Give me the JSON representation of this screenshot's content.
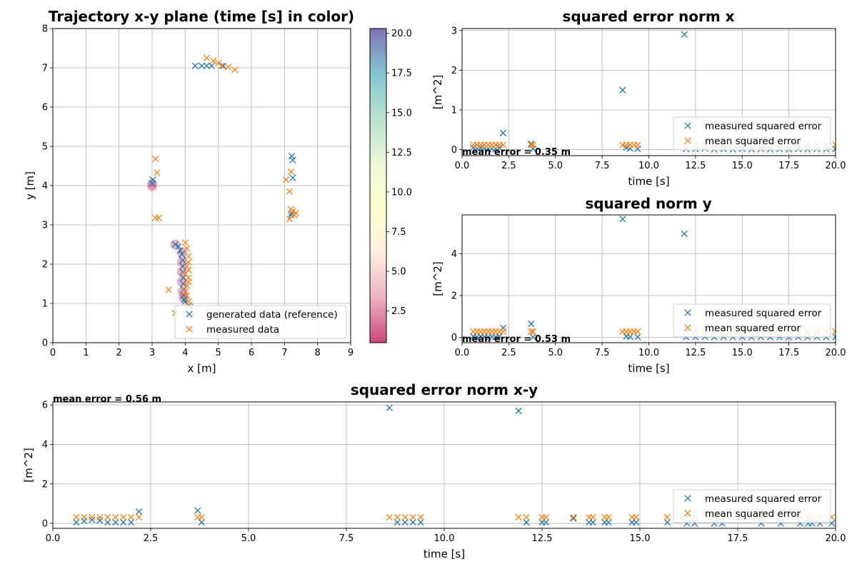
{
  "colors": {
    "measured_error": "#1f77b4",
    "mean_error": "#ff7f0e",
    "grid": "#b0b0b0",
    "colormap_stops": [
      "#c2185b",
      "#e6a0b0",
      "#fde9d9",
      "#ffffbf",
      "#e6f5d0",
      "#a6dbc0",
      "#66b8c8",
      "#5e4fa2"
    ]
  },
  "chart_data": [
    {
      "id": "traj",
      "type": "scatter",
      "title": "Trajectory x-y plane  (time [s] in color)",
      "xlabel": "x [m]",
      "ylabel": "y [m]",
      "xlim": [
        0,
        9
      ],
      "ylim": [
        0,
        8
      ],
      "xticks": [
        0,
        1,
        2,
        3,
        4,
        5,
        6,
        7,
        8,
        9
      ],
      "yticks": [
        0,
        1,
        2,
        3,
        4,
        5,
        6,
        7,
        8
      ],
      "grid": true,
      "legend_position": "lower-right",
      "legend": [
        "generated data (reference)",
        "measured data"
      ],
      "colorbar": {
        "range": [
          0.5,
          20.3
        ],
        "ticks": [
          2.5,
          5.0,
          7.5,
          10.0,
          12.5,
          15.0,
          17.5,
          20.0
        ],
        "tick_labels": [
          "2.5",
          "5.0",
          "7.5",
          "10.0",
          "12.5",
          "15.0",
          "17.5",
          "20.0"
        ]
      },
      "series": [
        {
          "name": "generated data (reference)",
          "points": [
            [
              3.7,
              2.5
            ],
            [
              3.8,
              2.45
            ],
            [
              3.85,
              2.35
            ],
            [
              3.9,
              2.25
            ],
            [
              3.92,
              2.1
            ],
            [
              3.93,
              1.95
            ],
            [
              3.93,
              1.8
            ],
            [
              3.94,
              1.65
            ],
            [
              3.94,
              1.5
            ],
            [
              3.95,
              1.35
            ],
            [
              3.95,
              1.2
            ],
            [
              3.97,
              1.1
            ],
            [
              4.0,
              1.05
            ],
            [
              4.1,
              0.95
            ],
            [
              3.0,
              4.05
            ],
            [
              3.02,
              4.15
            ],
            [
              7.2,
              3.25
            ],
            [
              7.22,
              3.3
            ],
            [
              7.25,
              4.2
            ],
            [
              7.25,
              4.65
            ],
            [
              7.22,
              4.75
            ],
            [
              4.3,
              7.05
            ],
            [
              4.5,
              7.05
            ],
            [
              4.65,
              7.05
            ],
            [
              4.8,
              7.05
            ],
            [
              5.15,
              7.05
            ]
          ]
        },
        {
          "name": "measured data",
          "points": [
            [
              3.5,
              1.35
            ],
            [
              3.7,
              0.75
            ],
            [
              4.0,
              2.55
            ],
            [
              4.05,
              2.4
            ],
            [
              4.1,
              2.2
            ],
            [
              4.1,
              2.05
            ],
            [
              4.05,
              1.95
            ],
            [
              4.1,
              1.85
            ],
            [
              4.0,
              1.75
            ],
            [
              4.1,
              1.65
            ],
            [
              4.1,
              1.55
            ],
            [
              4.05,
              1.45
            ],
            [
              4.0,
              1.3
            ],
            [
              4.05,
              1.2
            ],
            [
              4.1,
              1.05
            ],
            [
              4.15,
              0.92
            ],
            [
              3.1,
              4.68
            ],
            [
              3.15,
              4.33
            ],
            [
              3.1,
              3.18
            ],
            [
              3.2,
              3.18
            ],
            [
              7.05,
              4.15
            ],
            [
              7.15,
              3.85
            ],
            [
              7.2,
              4.35
            ],
            [
              7.15,
              3.15
            ],
            [
              7.2,
              3.4
            ],
            [
              7.3,
              3.25
            ],
            [
              7.35,
              3.3
            ],
            [
              7.25,
              3.35
            ],
            [
              4.65,
              7.25
            ],
            [
              4.85,
              7.18
            ],
            [
              5.0,
              7.12
            ],
            [
              5.1,
              7.05
            ],
            [
              5.3,
              7.02
            ],
            [
              5.5,
              6.95
            ]
          ]
        }
      ],
      "reference_circles": [
        [
          3.7,
          2.5
        ],
        [
          3.9,
          2.3
        ],
        [
          3.9,
          2.05
        ],
        [
          3.9,
          1.8
        ],
        [
          3.9,
          1.55
        ],
        [
          3.92,
          1.3
        ],
        [
          3.95,
          1.15
        ],
        [
          3.0,
          4.05
        ],
        [
          3.0,
          3.98
        ]
      ]
    },
    {
      "id": "ex",
      "type": "scatter",
      "title": "squared error norm  x",
      "xlabel": "time [s]",
      "ylabel": "[m^2]",
      "xlim": [
        0,
        20
      ],
      "ylim": [
        -0.15,
        3.05
      ],
      "xticks": [
        0.0,
        2.5,
        5.0,
        7.5,
        10.0,
        12.5,
        15.0,
        17.5,
        20.0
      ],
      "yticks": [
        0,
        1,
        2,
        3
      ],
      "grid": true,
      "legend_position": "lower-right",
      "annotation": "mean error = 0.35 m",
      "mean_value": 0.12,
      "series": [
        {
          "name": "measured squared error",
          "x": [
            0.6,
            0.8,
            1.0,
            1.2,
            1.4,
            1.6,
            1.8,
            2.0,
            2.2,
            3.7,
            3.8,
            8.6,
            8.8,
            9.0,
            9.4,
            11.9,
            12.0,
            12.5,
            13.0,
            13.5,
            14.0,
            14.5,
            15.0,
            15.5,
            16.0,
            16.5,
            17.0,
            17.5,
            18.0,
            18.5,
            19.0,
            19.5,
            20.0
          ],
          "y": [
            0.05,
            0.03,
            0.05,
            0.03,
            0.02,
            0.03,
            0.02,
            0.05,
            0.42,
            0.15,
            0.02,
            1.5,
            0.05,
            0.03,
            0.02,
            2.9,
            0.02,
            0.02,
            0.03,
            0.01,
            0.02,
            0.01,
            0.02,
            0.01,
            0.02,
            0.01,
            0.02,
            0.01,
            0.02,
            0.01,
            0.02,
            0.01,
            0.02
          ]
        },
        {
          "name": "mean squared error",
          "x": [
            0.6,
            0.8,
            1.0,
            1.2,
            1.4,
            1.6,
            1.8,
            2.0,
            2.2,
            3.7,
            3.8,
            8.6,
            8.8,
            9.0,
            9.2,
            9.4,
            12.0,
            12.5,
            13.0,
            13.5,
            14.0,
            14.5,
            15.0,
            15.5,
            16.0,
            16.5,
            17.0,
            17.5,
            18.0,
            18.5,
            19.0,
            19.5,
            20.0
          ],
          "y": [
            0.12,
            0.12,
            0.12,
            0.12,
            0.12,
            0.12,
            0.12,
            0.12,
            0.12,
            0.12,
            0.12,
            0.12,
            0.12,
            0.12,
            0.12,
            0.12,
            0.12,
            0.12,
            0.12,
            0.12,
            0.12,
            0.12,
            0.12,
            0.12,
            0.12,
            0.12,
            0.12,
            0.12,
            0.12,
            0.12,
            0.12,
            0.12,
            0.12
          ]
        }
      ]
    },
    {
      "id": "ey",
      "type": "scatter",
      "title": "squared norm  y",
      "xlabel": "time [s]",
      "ylabel": "[m^2]",
      "xlim": [
        0,
        20
      ],
      "ylim": [
        -0.25,
        5.85
      ],
      "xticks": [
        0.0,
        2.5,
        5.0,
        7.5,
        10.0,
        12.5,
        15.0,
        17.5,
        20.0
      ],
      "yticks": [
        0,
        2,
        4
      ],
      "grid": true,
      "legend_position": "lower-right",
      "annotation": "mean error = 0.53 m",
      "series": [
        {
          "name": "measured squared error",
          "x": [
            0.6,
            0.8,
            1.0,
            1.2,
            1.4,
            1.6,
            1.8,
            2.0,
            2.2,
            3.7,
            3.8,
            8.6,
            8.8,
            9.0,
            9.4,
            11.9,
            12.0,
            12.5,
            13.0,
            13.5,
            14.0,
            14.5,
            15.0,
            15.5,
            16.0,
            16.5,
            17.0,
            17.5,
            18.0,
            18.5,
            19.0,
            19.5,
            20.0
          ],
          "y": [
            0.05,
            0.03,
            0.05,
            0.03,
            0.02,
            0.03,
            0.02,
            0.05,
            0.45,
            0.65,
            0.02,
            5.65,
            0.05,
            0.03,
            0.02,
            4.95,
            0.02,
            0.02,
            0.03,
            0.01,
            0.02,
            0.01,
            0.02,
            0.01,
            0.02,
            0.01,
            0.02,
            0.01,
            0.02,
            0.01,
            0.02,
            0.01,
            0.02
          ]
        },
        {
          "name": "mean squared error",
          "x": [
            0.6,
            0.8,
            1.0,
            1.2,
            1.4,
            1.6,
            1.8,
            2.0,
            2.2,
            3.7,
            3.8,
            8.6,
            8.8,
            9.0,
            9.2,
            9.4,
            12.0,
            12.5,
            13.0,
            13.5,
            14.0,
            14.5,
            15.0,
            15.5,
            16.0,
            16.5,
            17.0,
            17.5,
            18.0,
            18.5,
            19.0,
            19.5,
            20.0
          ],
          "y": [
            0.28,
            0.28,
            0.28,
            0.28,
            0.28,
            0.28,
            0.28,
            0.28,
            0.28,
            0.28,
            0.28,
            0.28,
            0.28,
            0.28,
            0.28,
            0.28,
            0.28,
            0.28,
            0.28,
            0.28,
            0.28,
            0.28,
            0.28,
            0.28,
            0.28,
            0.28,
            0.28,
            0.28,
            0.28,
            0.28,
            0.28,
            0.28,
            0.28
          ]
        }
      ]
    },
    {
      "id": "exy",
      "type": "scatter",
      "title": "squared error norm  x-y",
      "xlabel": "time [s]",
      "ylabel": "[m^2]",
      "xlim": [
        0,
        20
      ],
      "ylim": [
        -0.25,
        6.15
      ],
      "xticks": [
        0.0,
        2.5,
        5.0,
        7.5,
        10.0,
        12.5,
        15.0,
        17.5,
        20.0
      ],
      "yticks": [
        0,
        2,
        4,
        6
      ],
      "grid": true,
      "legend_position": "lower-right",
      "annotation": "mean error = 0.56 m",
      "series": [
        {
          "name": "measured squared error",
          "x": [
            0.6,
            0.8,
            1.0,
            1.2,
            1.4,
            1.6,
            1.8,
            2.0,
            2.2,
            3.7,
            3.8,
            8.6,
            8.8,
            9.0,
            9.2,
            9.4,
            11.9,
            12.1,
            12.5,
            12.6,
            13.3,
            13.7,
            13.8,
            14.1,
            14.2,
            14.8,
            14.9,
            15.7,
            16.2,
            16.4,
            16.9,
            17.1,
            18.1,
            18.6,
            19.1,
            19.3,
            19.4,
            19.6,
            19.9
          ],
          "y": [
            0.05,
            0.12,
            0.18,
            0.15,
            0.05,
            0.05,
            0.05,
            0.05,
            0.6,
            0.65,
            0.05,
            5.85,
            0.05,
            0.05,
            0.05,
            0.05,
            5.7,
            0.05,
            0.05,
            0.05,
            0.25,
            0.05,
            0.05,
            0.05,
            0.05,
            0.05,
            0.05,
            0.05,
            0.0,
            0.0,
            0.0,
            0.0,
            0.0,
            0.0,
            0.0,
            0.0,
            0.0,
            0.0,
            0.0
          ]
        },
        {
          "name": "mean squared error",
          "x": [
            0.6,
            0.8,
            1.0,
            1.2,
            1.4,
            1.6,
            1.8,
            2.0,
            2.2,
            3.7,
            3.8,
            8.6,
            8.8,
            9.0,
            9.2,
            9.4,
            11.9,
            12.1,
            12.5,
            12.6,
            13.3,
            13.7,
            13.8,
            14.1,
            14.2,
            14.8,
            14.9,
            15.7,
            16.2,
            16.4,
            16.9,
            17.1,
            18.1,
            18.6,
            19.1,
            19.3,
            19.4,
            19.6,
            19.9
          ],
          "y": [
            0.31,
            0.31,
            0.31,
            0.31,
            0.31,
            0.31,
            0.31,
            0.31,
            0.31,
            0.31,
            0.31,
            0.31,
            0.31,
            0.31,
            0.31,
            0.31,
            0.31,
            0.31,
            0.31,
            0.31,
            0.31,
            0.31,
            0.31,
            0.31,
            0.31,
            0.31,
            0.31,
            0.31,
            0.31,
            0.31,
            0.31,
            0.31,
            0.31,
            0.31,
            0.31,
            0.31,
            0.31,
            0.31,
            0.31
          ]
        }
      ]
    }
  ]
}
